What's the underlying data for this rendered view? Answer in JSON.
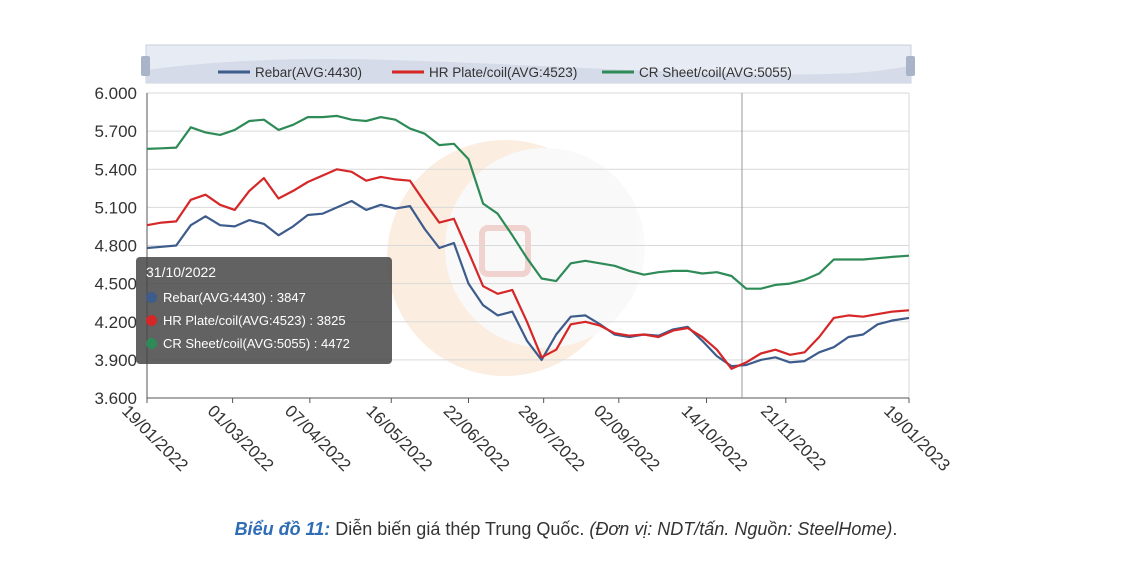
{
  "chart_data": {
    "type": "line",
    "title": "",
    "xlabel": "",
    "ylabel": "",
    "ylim": [
      3600,
      6000
    ],
    "y_ticks": [
      "3.600",
      "3.900",
      "4.200",
      "4.500",
      "4.800",
      "5.100",
      "5.400",
      "5.700",
      "6.000"
    ],
    "y_tick_values": [
      3600,
      3900,
      4200,
      4500,
      4800,
      5100,
      5400,
      5700,
      6000
    ],
    "x_ticks": [
      "19/01/2022",
      "01/03/2022",
      "07/04/2022",
      "16/05/2022",
      "22/06/2022",
      "28/07/2022",
      "02/09/2022",
      "14/10/2022",
      "21/11/2022",
      "19/01/2023"
    ],
    "grid": true,
    "legend_position": "top",
    "x": [
      "2022-01-19",
      "2022-01-26",
      "2022-02-02",
      "2022-02-09",
      "2022-02-16",
      "2022-02-23",
      "2022-03-02",
      "2022-03-09",
      "2022-03-16",
      "2022-03-23",
      "2022-03-30",
      "2022-04-06",
      "2022-04-13",
      "2022-04-20",
      "2022-04-27",
      "2022-05-04",
      "2022-05-11",
      "2022-05-18",
      "2022-05-25",
      "2022-06-01",
      "2022-06-08",
      "2022-06-15",
      "2022-06-22",
      "2022-06-29",
      "2022-07-06",
      "2022-07-13",
      "2022-07-20",
      "2022-07-27",
      "2022-08-03",
      "2022-08-10",
      "2022-08-17",
      "2022-08-24",
      "2022-08-31",
      "2022-09-07",
      "2022-09-14",
      "2022-09-21",
      "2022-09-28",
      "2022-10-05",
      "2022-10-12",
      "2022-10-19",
      "2022-10-26",
      "2022-11-02",
      "2022-11-09",
      "2022-11-16",
      "2022-11-23",
      "2022-11-30",
      "2022-12-07",
      "2022-12-14",
      "2022-12-21",
      "2022-12-28",
      "2023-01-04",
      "2023-01-11",
      "2023-01-19"
    ],
    "series": [
      {
        "name": "Rebar(AVG:4430)",
        "color": "#3d5c8c",
        "values": [
          4780,
          4790,
          4800,
          4960,
          5030,
          4960,
          4950,
          5000,
          4970,
          4880,
          4950,
          5040,
          5050,
          5100,
          5150,
          5080,
          5120,
          5090,
          5110,
          4930,
          4780,
          4820,
          4500,
          4330,
          4250,
          4280,
          4050,
          3900,
          4100,
          4240,
          4250,
          4180,
          4100,
          4080,
          4100,
          4090,
          4140,
          4160,
          4050,
          3930,
          3850,
          3860,
          3900,
          3920,
          3880,
          3890,
          3960,
          4000,
          4080,
          4100,
          4180,
          4210,
          4230
        ]
      },
      {
        "name": "HR Plate/coil(AVG:4523)",
        "color": "#d62728",
        "values": [
          4960,
          4980,
          4990,
          5160,
          5200,
          5120,
          5080,
          5230,
          5330,
          5170,
          5230,
          5300,
          5350,
          5400,
          5380,
          5310,
          5340,
          5320,
          5310,
          5140,
          4980,
          5010,
          4750,
          4480,
          4420,
          4450,
          4200,
          3920,
          3980,
          4180,
          4200,
          4170,
          4110,
          4090,
          4100,
          4080,
          4130,
          4150,
          4080,
          3980,
          3830,
          3880,
          3950,
          3980,
          3940,
          3960,
          4080,
          4230,
          4250,
          4240,
          4260,
          4280,
          4290
        ]
      },
      {
        "name": "CR Sheet/coil(AVG:5055)",
        "color": "#2e8b57",
        "values": [
          5560,
          5565,
          5570,
          5730,
          5690,
          5670,
          5710,
          5780,
          5790,
          5710,
          5750,
          5810,
          5810,
          5820,
          5790,
          5780,
          5810,
          5790,
          5720,
          5680,
          5590,
          5600,
          5480,
          5130,
          5050,
          4880,
          4700,
          4540,
          4520,
          4660,
          4680,
          4660,
          4640,
          4600,
          4570,
          4590,
          4600,
          4600,
          4580,
          4590,
          4560,
          4460,
          4460,
          4490,
          4500,
          4530,
          4580,
          4690,
          4690,
          4690,
          4700,
          4710,
          4720
        ]
      }
    ],
    "legend": [
      "Rebar(AVG:4430)",
      "HR Plate/coil(AVG:4523)",
      "CR Sheet/coil(AVG:5055)"
    ],
    "hover_date": "2022-10-31",
    "tooltip": {
      "date": "31/10/2022",
      "rows": [
        {
          "label": "Rebar(AVG:4430) : 3847",
          "color": "#3d5c8c"
        },
        {
          "label": "HR Plate/coil(AVG:4523) : 3825",
          "color": "#d62728"
        },
        {
          "label": "CR Sheet/coil(AVG:5055) : 4472",
          "color": "#2e8b57"
        }
      ]
    }
  },
  "caption": {
    "label": "Biểu đồ 11:",
    "text": " Diễn biến giá thép Trung Quốc. ",
    "note": "(Đơn vị: NDT/tấn. Nguồn: SteelHome)",
    "end": "."
  }
}
